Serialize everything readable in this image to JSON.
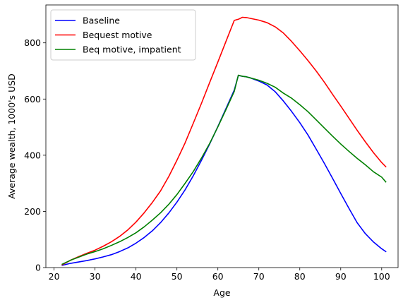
{
  "chart_data": {
    "type": "line",
    "title": "",
    "xlabel": "Age",
    "ylabel": "Average wealth, 1000's USD",
    "xlim": [
      18,
      104
    ],
    "ylim": [
      0,
      935
    ],
    "xticks": [
      20,
      30,
      40,
      50,
      60,
      70,
      80,
      90,
      100
    ],
    "yticks": [
      0,
      200,
      400,
      600,
      800
    ],
    "grid": false,
    "legend_position": "top-left",
    "series": [
      {
        "name": "Baseline",
        "color": "#0000ff",
        "x": [
          22,
          24,
          26,
          28,
          30,
          32,
          34,
          36,
          38,
          40,
          42,
          44,
          46,
          48,
          50,
          52,
          54,
          56,
          58,
          60,
          62,
          64,
          65,
          66,
          67,
          68,
          70,
          72,
          74,
          76,
          78,
          80,
          82,
          84,
          86,
          88,
          90,
          92,
          94,
          96,
          98,
          100,
          101
        ],
        "y": [
          8,
          15,
          20,
          25,
          31,
          38,
          46,
          57,
          70,
          87,
          107,
          131,
          160,
          194,
          233,
          277,
          327,
          382,
          440,
          502,
          567,
          632,
          684,
          681,
          679,
          675,
          664,
          650,
          626,
          593,
          556,
          516,
          472,
          422,
          371,
          318,
          264,
          211,
          160,
          121,
          91,
          67,
          57
        ]
      },
      {
        "name": "Bequest motive",
        "color": "#ff0000",
        "x": [
          22,
          24,
          26,
          28,
          30,
          32,
          34,
          36,
          38,
          40,
          42,
          44,
          46,
          48,
          50,
          52,
          54,
          56,
          58,
          60,
          62,
          64,
          65,
          66,
          67,
          68,
          70,
          72,
          74,
          76,
          78,
          80,
          82,
          84,
          86,
          88,
          90,
          92,
          94,
          96,
          98,
          100,
          101
        ],
        "y": [
          10,
          26,
          39,
          51,
          62,
          76,
          92,
          111,
          134,
          162,
          195,
          232,
          273,
          324,
          382,
          444,
          514,
          585,
          659,
          732,
          806,
          880,
          884,
          891,
          890,
          887,
          881,
          872,
          857,
          835,
          805,
          772,
          737,
          700,
          660,
          617,
          575,
          532,
          489,
          448,
          409,
          374,
          359
        ]
      },
      {
        "name": "Beq motive, impatient",
        "color": "#008000",
        "x": [
          22,
          24,
          26,
          28,
          30,
          32,
          34,
          36,
          38,
          40,
          42,
          44,
          46,
          48,
          50,
          52,
          54,
          56,
          58,
          60,
          62,
          64,
          65,
          66,
          67,
          68,
          70,
          72,
          74,
          76,
          78,
          80,
          82,
          84,
          86,
          88,
          90,
          92,
          94,
          96,
          98,
          100,
          101
        ],
        "y": [
          12,
          26,
          37,
          48,
          57,
          67,
          79,
          92,
          107,
          124,
          145,
          169,
          195,
          225,
          260,
          300,
          342,
          390,
          442,
          501,
          563,
          627,
          685,
          681,
          679,
          675,
          667,
          656,
          642,
          621,
          603,
          580,
          555,
          526,
          497,
          468,
          440,
          414,
          389,
          366,
          341,
          322,
          305
        ]
      }
    ]
  }
}
